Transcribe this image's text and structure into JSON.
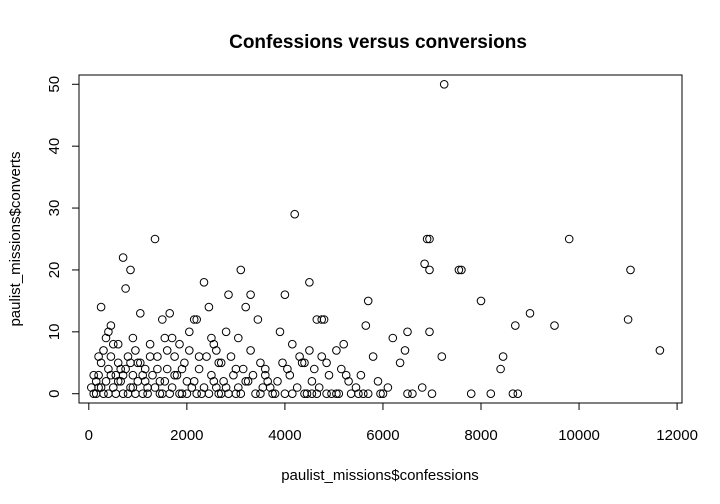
{
  "chart_data": {
    "type": "scatter",
    "title": "Confessions versus conversions",
    "xlabel": "paulist_missions$confessions",
    "ylabel": "paulist_missions$converts",
    "xlim": [
      -200,
      12100
    ],
    "ylim": [
      -1.5,
      51.5
    ],
    "xticks": [
      "0",
      "2000",
      "4000",
      "6000",
      "8000",
      "10000",
      "12000"
    ],
    "yticks": [
      "0",
      "10",
      "20",
      "30",
      "40",
      "50"
    ],
    "grid": false,
    "legend": "none",
    "marker": "open-circle",
    "points": [
      [
        7250,
        50
      ],
      [
        4200,
        29
      ],
      [
        1350,
        25
      ],
      [
        6900,
        25
      ],
      [
        6950,
        25
      ],
      [
        9800,
        25
      ],
      [
        700,
        22
      ],
      [
        6850,
        21
      ],
      [
        7550,
        20
      ],
      [
        7600,
        20
      ],
      [
        6950,
        20
      ],
      [
        850,
        20
      ],
      [
        3100,
        20
      ],
      [
        11050,
        20
      ],
      [
        750,
        17
      ],
      [
        4000,
        16
      ],
      [
        2850,
        16
      ],
      [
        3300,
        16
      ],
      [
        5700,
        15
      ],
      [
        8000,
        15
      ],
      [
        250,
        14
      ],
      [
        2450,
        14
      ],
      [
        3200,
        14
      ],
      [
        4500,
        18
      ],
      [
        2350,
        18
      ],
      [
        9000,
        13
      ],
      [
        1050,
        13
      ],
      [
        1650,
        13
      ],
      [
        11000,
        12
      ],
      [
        3450,
        12
      ],
      [
        4650,
        12
      ],
      [
        4750,
        12
      ],
      [
        4800,
        12
      ],
      [
        2150,
        12
      ],
      [
        2200,
        12
      ],
      [
        1500,
        12
      ],
      [
        5650,
        11
      ],
      [
        8700,
        11
      ],
      [
        9500,
        11
      ],
      [
        6500,
        10
      ],
      [
        6950,
        10
      ],
      [
        3900,
        10
      ],
      [
        2800,
        10
      ],
      [
        450,
        11
      ],
      [
        6200,
        9
      ],
      [
        6450,
        7
      ],
      [
        7200,
        6
      ],
      [
        8450,
        6
      ],
      [
        11650,
        7
      ],
      [
        4500,
        7
      ],
      [
        5200,
        8
      ],
      [
        5050,
        7
      ],
      [
        6350,
        5
      ],
      [
        5800,
        6
      ],
      [
        8400,
        4
      ],
      [
        4350,
        5
      ],
      [
        3500,
        5
      ],
      [
        4900,
        3
      ],
      [
        5300,
        2
      ],
      [
        6800,
        1
      ],
      [
        7000,
        0
      ],
      [
        7800,
        0
      ],
      [
        8200,
        0
      ],
      [
        8650,
        0
      ],
      [
        8750,
        0
      ],
      [
        6500,
        0
      ],
      [
        6000,
        0
      ],
      [
        5700,
        0
      ],
      [
        5500,
        0
      ],
      [
        5100,
        0
      ],
      [
        4850,
        0
      ],
      [
        4450,
        0
      ],
      [
        4000,
        0
      ],
      [
        3750,
        0
      ],
      [
        3400,
        0
      ],
      [
        3000,
        0
      ],
      [
        2700,
        0
      ],
      [
        2300,
        0
      ],
      [
        1900,
        0
      ],
      [
        1500,
        0
      ],
      [
        1100,
        0
      ],
      [
        700,
        0
      ],
      [
        300,
        0
      ],
      [
        100,
        0
      ],
      [
        50,
        1
      ],
      [
        150,
        2
      ],
      [
        200,
        3
      ],
      [
        250,
        5
      ],
      [
        300,
        7
      ],
      [
        350,
        9
      ],
      [
        400,
        4
      ],
      [
        450,
        6
      ],
      [
        500,
        8
      ],
      [
        550,
        3
      ],
      [
        600,
        5
      ],
      [
        650,
        2
      ],
      [
        750,
        4
      ],
      [
        800,
        6
      ],
      [
        850,
        1
      ],
      [
        900,
        3
      ],
      [
        950,
        7
      ],
      [
        1000,
        2
      ],
      [
        1050,
        5
      ],
      [
        1150,
        4
      ],
      [
        1200,
        1
      ],
      [
        1250,
        8
      ],
      [
        1300,
        3
      ],
      [
        1400,
        6
      ],
      [
        1450,
        2
      ],
      [
        1550,
        9
      ],
      [
        1600,
        4
      ],
      [
        1700,
        1
      ],
      [
        1750,
        6
      ],
      [
        1800,
        3
      ],
      [
        1850,
        8
      ],
      [
        1950,
        5
      ],
      [
        2000,
        2
      ],
      [
        2050,
        7
      ],
      [
        2100,
        1
      ],
      [
        2250,
        4
      ],
      [
        2400,
        6
      ],
      [
        2500,
        3
      ],
      [
        2550,
        8
      ],
      [
        2600,
        1
      ],
      [
        2650,
        5
      ],
      [
        2750,
        2
      ],
      [
        2900,
        6
      ],
      [
        2950,
        3
      ],
      [
        3050,
        1
      ],
      [
        3150,
        4
      ],
      [
        3250,
        2
      ],
      [
        3300,
        7
      ],
      [
        3600,
        3
      ],
      [
        3700,
        1
      ],
      [
        3850,
        2
      ],
      [
        3950,
        5
      ],
      [
        4100,
        3
      ],
      [
        4250,
        1
      ],
      [
        4300,
        6
      ],
      [
        4550,
        2
      ],
      [
        4600,
        4
      ],
      [
        4700,
        1
      ],
      [
        4950,
        0
      ],
      [
        5250,
        3
      ],
      [
        5450,
        1
      ],
      [
        5900,
        2
      ],
      [
        6100,
        1
      ],
      [
        6600,
        0
      ],
      [
        150,
        0
      ],
      [
        200,
        1
      ],
      [
        350,
        2
      ],
      [
        400,
        0
      ],
      [
        500,
        1
      ],
      [
        550,
        0
      ],
      [
        600,
        2
      ],
      [
        650,
        4
      ],
      [
        800,
        0
      ],
      [
        900,
        1
      ],
      [
        950,
        0
      ],
      [
        1000,
        5
      ],
      [
        1100,
        3
      ],
      [
        1200,
        0
      ],
      [
        1350,
        1
      ],
      [
        1450,
        0
      ],
      [
        1550,
        2
      ],
      [
        1650,
        0
      ],
      [
        1750,
        3
      ],
      [
        1850,
        0
      ],
      [
        2000,
        0
      ],
      [
        2150,
        2
      ],
      [
        2200,
        0
      ],
      [
        2350,
        1
      ],
      [
        2450,
        0
      ],
      [
        2550,
        2
      ],
      [
        2650,
        0
      ],
      [
        2800,
        1
      ],
      [
        2850,
        0
      ],
      [
        3100,
        0
      ],
      [
        3200,
        2
      ],
      [
        3500,
        0
      ],
      [
        3550,
        1
      ],
      [
        3800,
        0
      ],
      [
        4150,
        0
      ],
      [
        4400,
        0
      ],
      [
        4550,
        0
      ],
      [
        4650,
        0
      ],
      [
        5050,
        0
      ],
      [
        5350,
        0
      ],
      [
        5600,
        0
      ],
      [
        5950,
        0
      ],
      [
        100,
        3
      ],
      [
        250,
        1
      ],
      [
        450,
        3
      ],
      [
        700,
        3
      ],
      [
        850,
        5
      ],
      [
        1150,
        2
      ],
      [
        1400,
        4
      ],
      [
        1600,
        7
      ],
      [
        1900,
        4
      ],
      [
        2250,
        6
      ],
      [
        2500,
        9
      ],
      [
        2700,
        5
      ],
      [
        3000,
        4
      ],
      [
        3350,
        3
      ],
      [
        3650,
        2
      ],
      [
        4050,
        4
      ],
      [
        4400,
        5
      ],
      [
        4850,
        5
      ],
      [
        5150,
        4
      ],
      [
        5550,
        3
      ],
      [
        200,
        6
      ],
      [
        400,
        10
      ],
      [
        600,
        8
      ],
      [
        900,
        9
      ],
      [
        1250,
        6
      ],
      [
        1700,
        9
      ],
      [
        2050,
        10
      ],
      [
        2600,
        7
      ],
      [
        3050,
        9
      ],
      [
        3600,
        4
      ],
      [
        4150,
        8
      ],
      [
        4750,
        6
      ]
    ]
  }
}
